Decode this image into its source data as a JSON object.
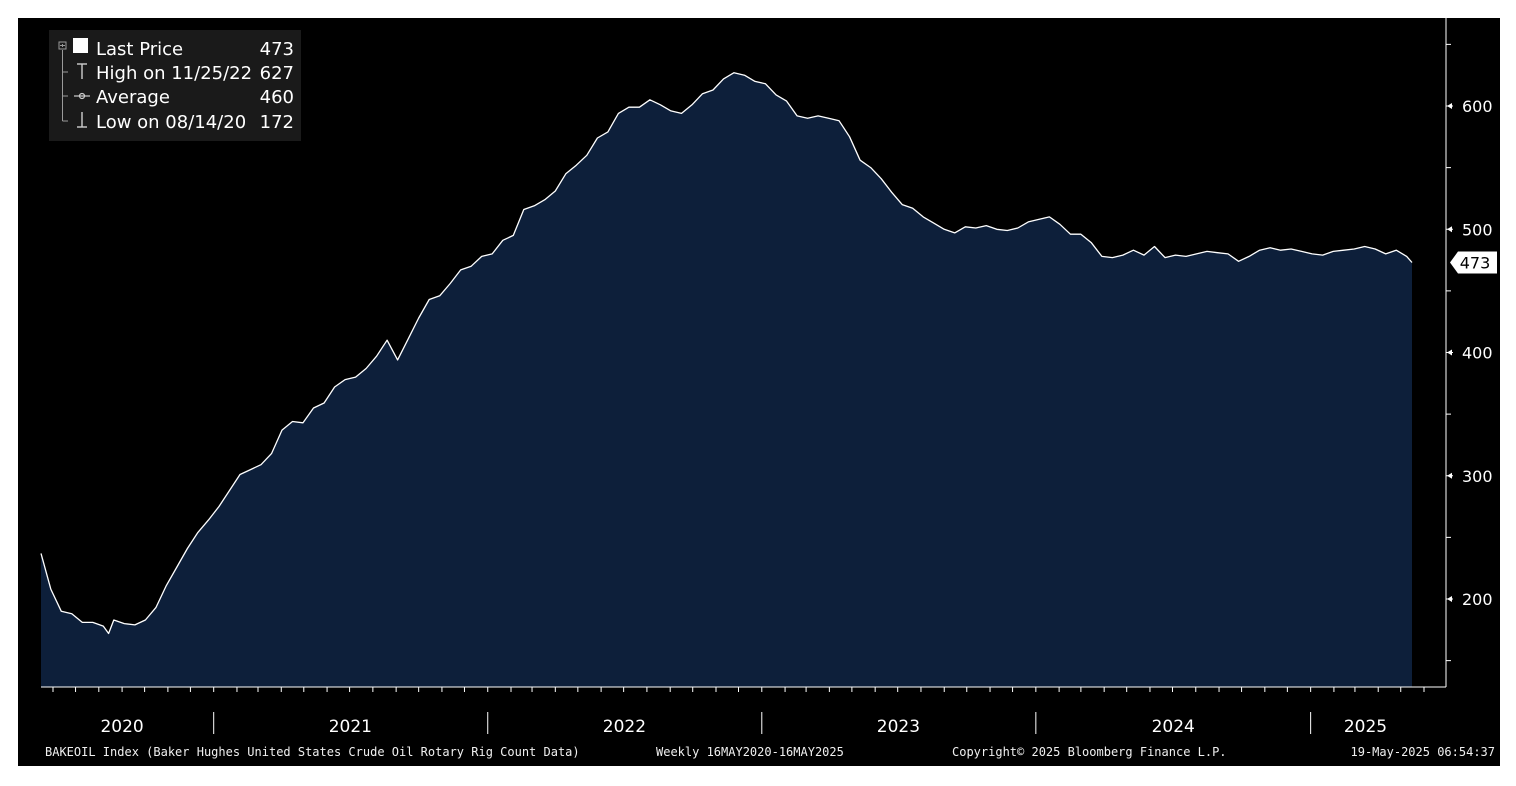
{
  "chart_data": {
    "type": "area",
    "frequency": "Weekly",
    "x_range": [
      "2020-05-16",
      "2025-05-16"
    ],
    "ylim": [
      130,
      650
    ],
    "y_ticks": [
      200,
      300,
      400,
      500,
      600
    ],
    "y_tick_labels": [
      "200",
      "300",
      "400",
      "500",
      "600"
    ],
    "year_labels": [
      {
        "label": "2020",
        "date": "2020-09-01"
      },
      {
        "label": "2021",
        "date": "2021-07-02"
      },
      {
        "label": "2022",
        "date": "2022-07-02"
      },
      {
        "label": "2023",
        "date": "2023-07-02"
      },
      {
        "label": "2024",
        "date": "2024-07-02"
      },
      {
        "label": "2025",
        "date": "2025-03-15"
      }
    ],
    "year_boundaries": [
      "2021-01-01",
      "2022-01-01",
      "2023-01-01",
      "2024-01-01",
      "2025-01-01"
    ],
    "grid": false,
    "legend_position": "top-left",
    "last_value_label": "473",
    "series": [
      {
        "name": "Last Price",
        "points": [
          [
            "2020-05-16",
            237
          ],
          [
            "2020-05-29",
            208
          ],
          [
            "2020-06-12",
            190
          ],
          [
            "2020-06-26",
            188
          ],
          [
            "2020-07-10",
            181
          ],
          [
            "2020-07-24",
            181
          ],
          [
            "2020-08-07",
            178
          ],
          [
            "2020-08-14",
            172
          ],
          [
            "2020-08-21",
            183
          ],
          [
            "2020-09-04",
            180
          ],
          [
            "2020-09-18",
            179
          ],
          [
            "2020-10-02",
            183
          ],
          [
            "2020-10-16",
            193
          ],
          [
            "2020-10-30",
            211
          ],
          [
            "2020-11-13",
            226
          ],
          [
            "2020-11-27",
            241
          ],
          [
            "2020-12-11",
            254
          ],
          [
            "2020-12-25",
            264
          ],
          [
            "2021-01-08",
            275
          ],
          [
            "2021-01-22",
            288
          ],
          [
            "2021-02-05",
            301
          ],
          [
            "2021-02-19",
            305
          ],
          [
            "2021-03-05",
            309
          ],
          [
            "2021-03-19",
            318
          ],
          [
            "2021-04-02",
            337
          ],
          [
            "2021-04-16",
            344
          ],
          [
            "2021-04-30",
            343
          ],
          [
            "2021-05-14",
            355
          ],
          [
            "2021-05-28",
            359
          ],
          [
            "2021-06-11",
            372
          ],
          [
            "2021-06-25",
            378
          ],
          [
            "2021-07-09",
            380
          ],
          [
            "2021-07-23",
            387
          ],
          [
            "2021-08-06",
            397
          ],
          [
            "2021-08-20",
            410
          ],
          [
            "2021-09-03",
            394
          ],
          [
            "2021-09-17",
            411
          ],
          [
            "2021-10-01",
            428
          ],
          [
            "2021-10-15",
            443
          ],
          [
            "2021-10-29",
            446
          ],
          [
            "2021-11-12",
            456
          ],
          [
            "2021-11-26",
            467
          ],
          [
            "2021-12-10",
            470
          ],
          [
            "2021-12-24",
            478
          ],
          [
            "2022-01-07",
            480
          ],
          [
            "2022-01-21",
            491
          ],
          [
            "2022-02-04",
            495
          ],
          [
            "2022-02-18",
            516
          ],
          [
            "2022-03-04",
            519
          ],
          [
            "2022-03-18",
            524
          ],
          [
            "2022-04-01",
            531
          ],
          [
            "2022-04-15",
            545
          ],
          [
            "2022-04-29",
            552
          ],
          [
            "2022-05-13",
            560
          ],
          [
            "2022-05-27",
            574
          ],
          [
            "2022-06-10",
            579
          ],
          [
            "2022-06-24",
            594
          ],
          [
            "2022-07-08",
            599
          ],
          [
            "2022-07-22",
            599
          ],
          [
            "2022-08-05",
            605
          ],
          [
            "2022-08-19",
            601
          ],
          [
            "2022-09-02",
            596
          ],
          [
            "2022-09-16",
            594
          ],
          [
            "2022-09-30",
            601
          ],
          [
            "2022-10-14",
            610
          ],
          [
            "2022-10-28",
            613
          ],
          [
            "2022-11-11",
            622
          ],
          [
            "2022-11-25",
            627
          ],
          [
            "2022-12-09",
            625
          ],
          [
            "2022-12-23",
            620
          ],
          [
            "2023-01-06",
            618
          ],
          [
            "2023-01-20",
            609
          ],
          [
            "2023-02-03",
            604
          ],
          [
            "2023-02-17",
            592
          ],
          [
            "2023-03-03",
            590
          ],
          [
            "2023-03-17",
            592
          ],
          [
            "2023-03-31",
            590
          ],
          [
            "2023-04-14",
            588
          ],
          [
            "2023-04-28",
            575
          ],
          [
            "2023-05-12",
            556
          ],
          [
            "2023-05-26",
            550
          ],
          [
            "2023-06-09",
            541
          ],
          [
            "2023-06-23",
            530
          ],
          [
            "2023-07-07",
            520
          ],
          [
            "2023-07-21",
            517
          ],
          [
            "2023-08-04",
            510
          ],
          [
            "2023-08-18",
            505
          ],
          [
            "2023-09-01",
            500
          ],
          [
            "2023-09-15",
            497
          ],
          [
            "2023-09-29",
            502
          ],
          [
            "2023-10-13",
            501
          ],
          [
            "2023-10-27",
            503
          ],
          [
            "2023-11-10",
            500
          ],
          [
            "2023-11-24",
            499
          ],
          [
            "2023-12-08",
            501
          ],
          [
            "2023-12-22",
            506
          ],
          [
            "2024-01-05",
            508
          ],
          [
            "2024-01-19",
            510
          ],
          [
            "2024-02-02",
            504
          ],
          [
            "2024-02-16",
            496
          ],
          [
            "2024-03-01",
            496
          ],
          [
            "2024-03-15",
            489
          ],
          [
            "2024-03-29",
            478
          ],
          [
            "2024-04-12",
            477
          ],
          [
            "2024-04-26",
            479
          ],
          [
            "2024-05-10",
            483
          ],
          [
            "2024-05-24",
            479
          ],
          [
            "2024-06-07",
            486
          ],
          [
            "2024-06-21",
            477
          ],
          [
            "2024-07-05",
            479
          ],
          [
            "2024-07-19",
            478
          ],
          [
            "2024-08-02",
            480
          ],
          [
            "2024-08-16",
            482
          ],
          [
            "2024-08-30",
            481
          ],
          [
            "2024-09-13",
            480
          ],
          [
            "2024-09-27",
            474
          ],
          [
            "2024-10-11",
            478
          ],
          [
            "2024-10-25",
            483
          ],
          [
            "2024-11-08",
            485
          ],
          [
            "2024-11-22",
            483
          ],
          [
            "2024-12-06",
            484
          ],
          [
            "2024-12-20",
            482
          ],
          [
            "2025-01-03",
            480
          ],
          [
            "2025-01-17",
            479
          ],
          [
            "2025-01-31",
            482
          ],
          [
            "2025-02-14",
            483
          ],
          [
            "2025-02-28",
            484
          ],
          [
            "2025-03-14",
            486
          ],
          [
            "2025-03-28",
            484
          ],
          [
            "2025-04-11",
            480
          ],
          [
            "2025-04-25",
            483
          ],
          [
            "2025-05-09",
            478
          ],
          [
            "2025-05-16",
            473
          ]
        ]
      }
    ],
    "legend": [
      {
        "marker": "square",
        "label": "Last Price",
        "value": "473"
      },
      {
        "marker": "high",
        "label": "High on 11/25/22",
        "value": "627"
      },
      {
        "marker": "average",
        "label": "Average",
        "value": "460"
      },
      {
        "marker": "low",
        "label": "Low on 08/14/20",
        "value": "172"
      }
    ],
    "footer": {
      "description": "BAKEOIL Index (Baker Hughes United States Crude Oil Rotary Rig Count Data)",
      "frequency_range": "Weekly 16MAY2020-16MAY2025",
      "copyright": "Copyright© 2025 Bloomberg Finance L.P.",
      "timestamp": "19-May-2025 06:54:37"
    },
    "colors": {
      "background": "#000000",
      "area_fill": "#0d1f3a",
      "line": "#ffffff",
      "text": "#ffffff",
      "legend_bg": "#1a1a1a"
    }
  }
}
